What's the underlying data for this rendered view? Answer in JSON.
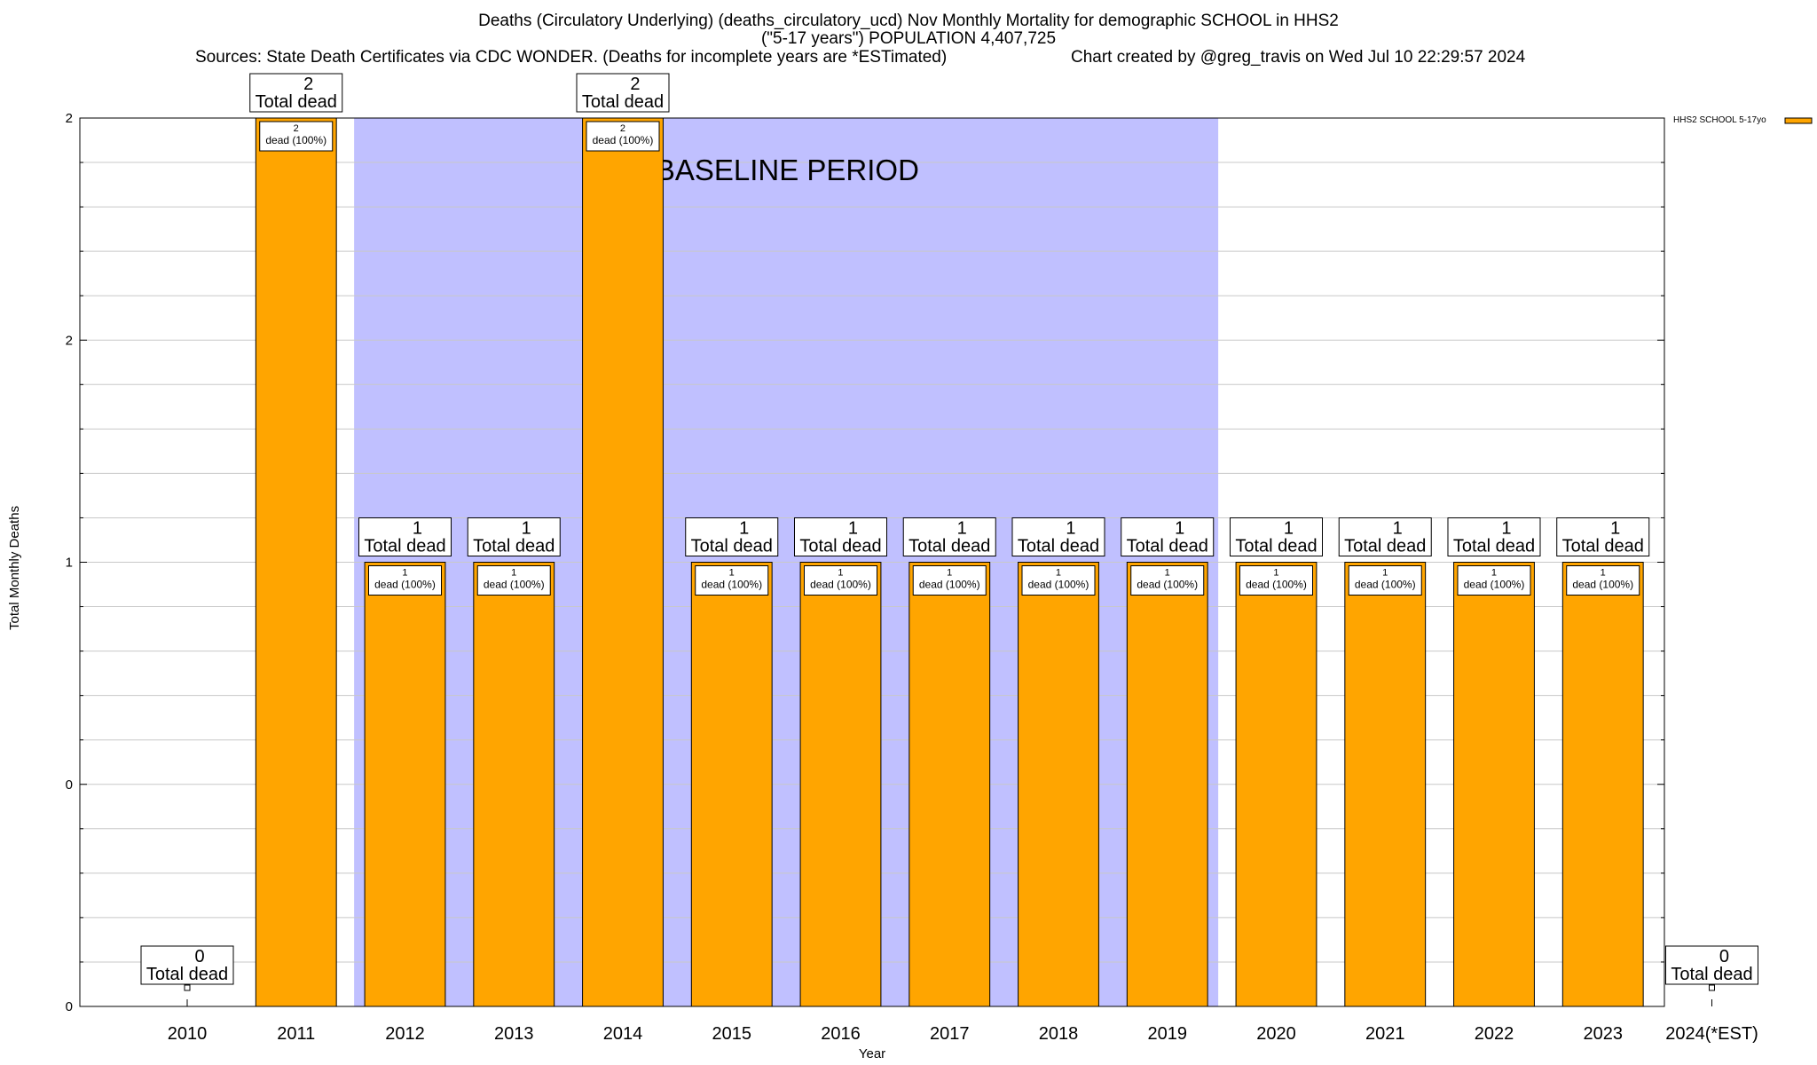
{
  "header": {
    "title_line1": "Deaths (Circulatory Underlying) (deaths_circulatory_ucd) Nov Monthly Mortality for demographic SCHOOL in HHS2",
    "title_line2": "(\"5-17 years\") POPULATION 4,407,725",
    "sources": "Sources: State Death Certificates via CDC WONDER. (Deaths for incomplete years are *ESTimated)",
    "created": "Chart created by @greg_travis on Wed Jul 10 22:29:57 2024"
  },
  "chart_data": {
    "type": "bar",
    "title": "Deaths (Circulatory Underlying) (deaths_circulatory_ucd) Nov Monthly Mortality for demographic SCHOOL in HHS2",
    "xlabel": "Year",
    "ylabel": "Total Monthly Deaths",
    "categories": [
      "2010",
      "2011",
      "2012",
      "2013",
      "2014",
      "2015",
      "2016",
      "2017",
      "2018",
      "2019",
      "2020",
      "2021",
      "2022",
      "2023",
      "2024(*EST)"
    ],
    "series": [
      {
        "name": "HHS2 SCHOOL 5-17yo",
        "color": "#ffa500",
        "values": [
          0,
          2,
          1,
          1,
          2,
          1,
          1,
          1,
          1,
          1,
          1,
          1,
          1,
          1,
          0
        ]
      }
    ],
    "total_labels": [
      "0\nTotal dead",
      "2\nTotal dead",
      "1\nTotal dead",
      "1\nTotal dead",
      "2\nTotal dead",
      "1\nTotal dead",
      "1\nTotal dead",
      "1\nTotal dead",
      "1\nTotal dead",
      "1\nTotal dead",
      "1\nTotal dead",
      "1\nTotal dead",
      "1\nTotal dead",
      "1\nTotal dead",
      "0\nTotal dead"
    ],
    "bar_labels": [
      "",
      "2\ndead (100%)",
      "1\ndead (100%)",
      "1\ndead (100%)",
      "2\ndead (100%)",
      "1\ndead (100%)",
      "1\ndead (100%)",
      "1\ndead (100%)",
      "1\ndead (100%)",
      "1\ndead (100%)",
      "1\ndead (100%)",
      "1\ndead (100%)",
      "1\ndead (100%)",
      "1\ndead (100%)",
      ""
    ],
    "ylim": [
      0,
      2
    ],
    "y_ticks": [
      0,
      0.5,
      1,
      1.5,
      2
    ],
    "y_tick_labels": [
      "0",
      "0",
      "1",
      "2",
      "2"
    ],
    "baseline_period": {
      "label": "BASELINE PERIOD",
      "from": "2012",
      "to": "2019",
      "color": "#c0c0ff"
    },
    "grid": true,
    "legend_position": "top-right"
  }
}
